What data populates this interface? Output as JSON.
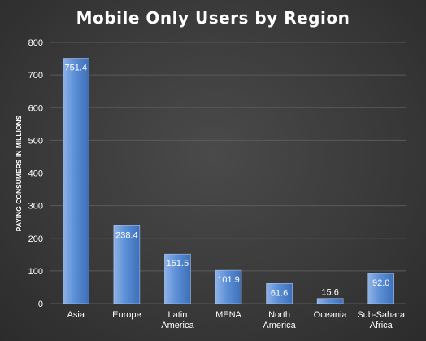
{
  "chart_data": {
    "type": "bar",
    "title": "Mobile Only Users by Region",
    "xlabel": "",
    "ylabel": "PAYING CONSUMERS IN MILLIONS",
    "ylim": [
      0,
      800
    ],
    "yticks": [
      0,
      100,
      200,
      300,
      400,
      500,
      600,
      700,
      800
    ],
    "grid": true,
    "categories": [
      [
        "Asia"
      ],
      [
        "Europe"
      ],
      [
        "Latin",
        "America"
      ],
      [
        "MENA"
      ],
      [
        "North",
        "America"
      ],
      [
        "Oceania"
      ],
      [
        "Sub-Sahara",
        "Africa"
      ]
    ],
    "values": [
      751.4,
      238.4,
      151.5,
      101.9,
      61.6,
      15.6,
      92.0
    ],
    "data_labels": [
      "751.4",
      "238.4",
      "151.5",
      "101.9",
      "61.6",
      "15.6",
      "92.0"
    ],
    "colors": {
      "bar_light": "#8fb2e6",
      "bar_mid": "#5b8fd6",
      "bar_dark": "#3d6fb8",
      "grid": "#5a5a5a",
      "text": "#ffffff"
    }
  }
}
